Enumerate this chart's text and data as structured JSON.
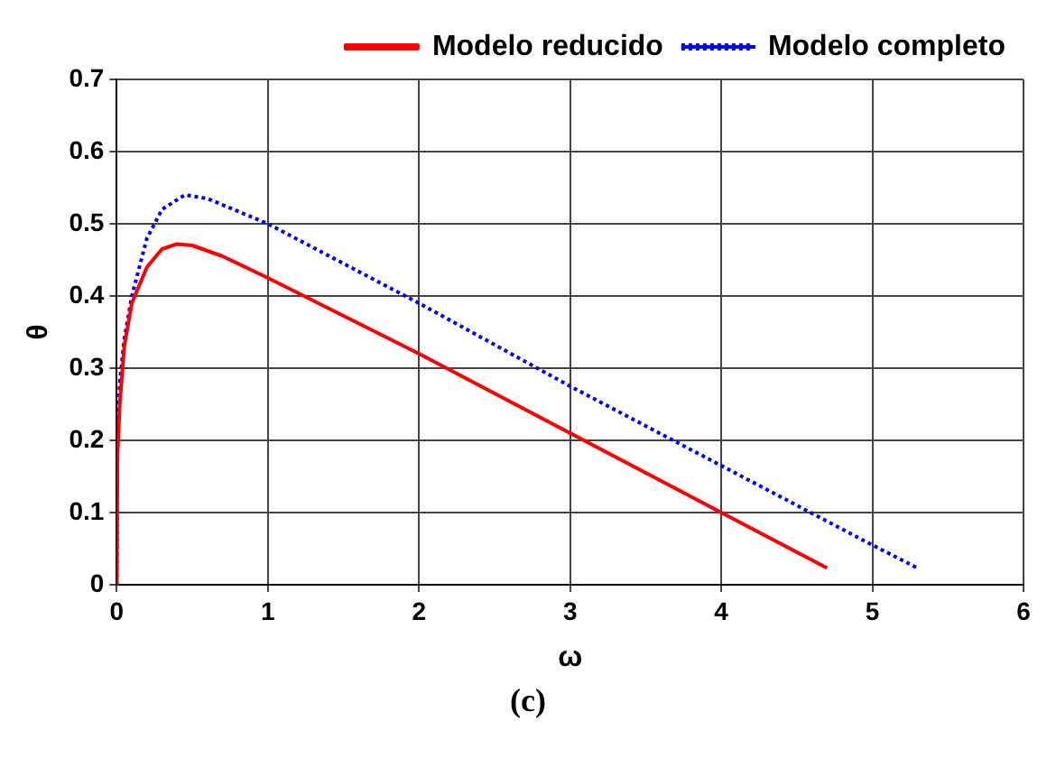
{
  "chart_data": {
    "type": "line",
    "xlabel": "ω",
    "ylabel": "θ",
    "annotations": [
      "(c)"
    ],
    "xlim": [
      0,
      6
    ],
    "xticks": [
      0,
      1,
      2,
      3,
      4,
      5,
      6
    ],
    "ylim": [
      0,
      0.7
    ],
    "yticks": [
      0,
      0.1,
      0.2,
      0.3,
      0.4,
      0.5,
      0.6,
      0.7
    ],
    "grid": true,
    "legend": "top right",
    "marker": "none",
    "series": [
      {
        "name": "Modelo reducido",
        "color": "#ff0000",
        "line_style": "solid",
        "x": [
          0,
          0.005,
          0.02,
          0.05,
          0.1,
          0.2,
          0.3,
          0.4,
          0.5,
          0.7,
          1,
          2,
          3,
          4,
          4.7
        ],
        "values": [
          0,
          0.18,
          0.25,
          0.33,
          0.39,
          0.44,
          0.465,
          0.472,
          0.47,
          0.455,
          0.425,
          0.32,
          0.21,
          0.1,
          0.023
        ]
      },
      {
        "name": "Modelo completo",
        "color": "#0000ff",
        "line_style": "dotted",
        "x": [
          0,
          0.005,
          0.02,
          0.05,
          0.1,
          0.2,
          0.3,
          0.45,
          0.6,
          1,
          2,
          3,
          4,
          5,
          5.3
        ],
        "values": [
          0,
          0.2,
          0.28,
          0.34,
          0.4,
          0.48,
          0.52,
          0.54,
          0.535,
          0.5,
          0.39,
          0.275,
          0.165,
          0.055,
          0.023
        ]
      }
    ]
  }
}
